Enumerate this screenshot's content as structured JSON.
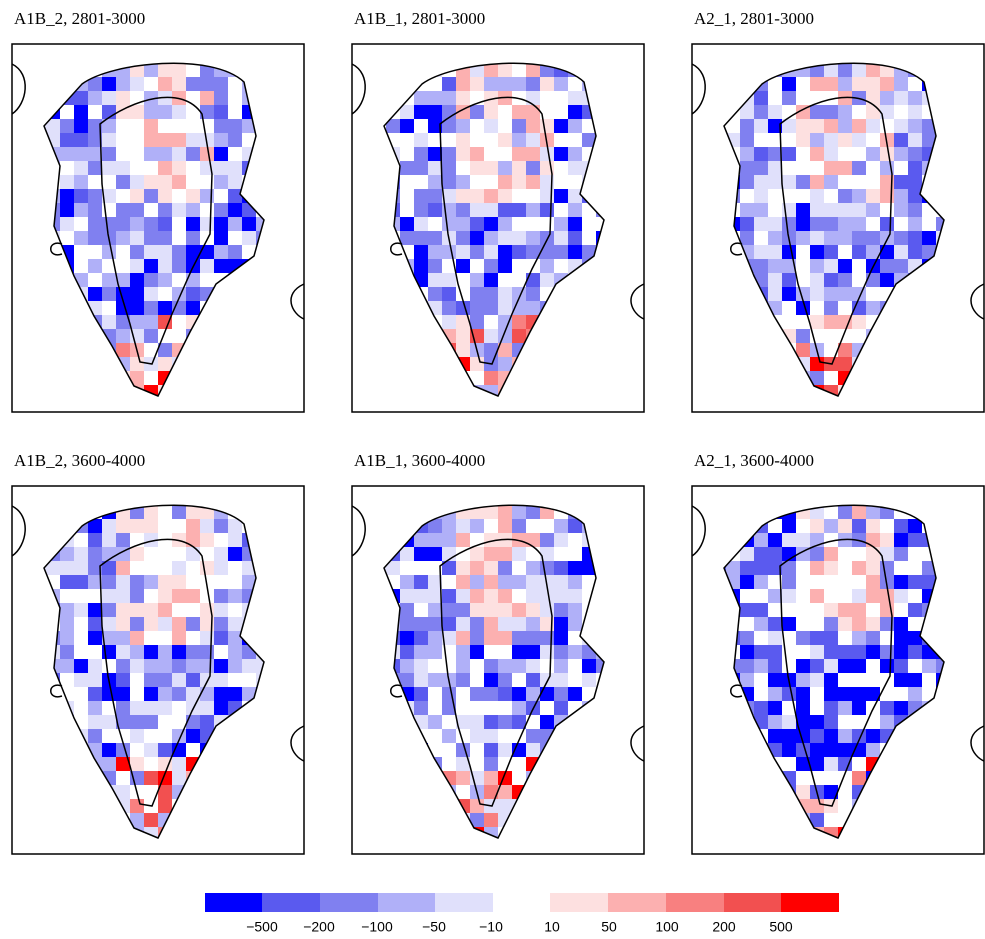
{
  "panels": [
    {
      "title": "A1B_2, 2801-3000"
    },
    {
      "title": "A1B_1, 2801-3000"
    },
    {
      "title": "A2_1, 2801-3000"
    },
    {
      "title": "A1B_2, 3600-4000"
    },
    {
      "title": "A1B_1, 3600-4000"
    },
    {
      "title": "A2_1, 3600-4000"
    }
  ],
  "colorbar": {
    "colors": [
      "#0000ff",
      "#5a5aef",
      "#8080f0",
      "#b0b0f8",
      "#e0e0fb",
      "#fde0e0",
      "#fcb0b0",
      "#f88080",
      "#f25050",
      "#ff0000"
    ],
    "labels": [
      "−500",
      "−200",
      "−100",
      "−50",
      "−10",
      "10",
      "50",
      "100",
      "200",
      "500"
    ]
  }
}
